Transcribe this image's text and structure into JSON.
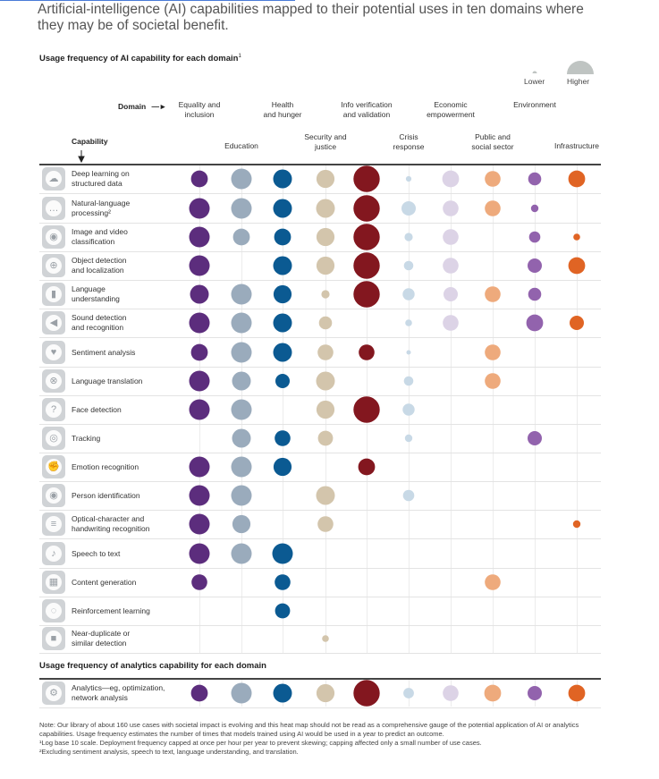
{
  "title": "Artificial-intelligence (AI) capabilities mapped to their potential uses in ten domains where they may be of societal benefit.",
  "chart_data": {
    "type": "bubble-heatmap",
    "title": "Usage frequency of AI capability for each domain",
    "title_sup": "1",
    "scale": "log base 10",
    "legend": {
      "lower": "Lower",
      "higher": "Higher"
    },
    "axis_labels": {
      "domain": "Domain",
      "capability": "Capability"
    },
    "domains": [
      {
        "name": "Equality and inclusion",
        "lines": [
          "Equality and",
          "inclusion"
        ],
        "color": "#5c2d7d"
      },
      {
        "name": "Education",
        "lines": [
          "Education"
        ],
        "color": "#9aabbc"
      },
      {
        "name": "Health and hunger",
        "lines": [
          "Health",
          "and hunger"
        ],
        "color": "#0b5a92"
      },
      {
        "name": "Security and justice",
        "lines": [
          "Security and",
          "justice"
        ],
        "color": "#d3c5ac"
      },
      {
        "name": "Info verification and validation",
        "lines": [
          "Info verification",
          "and validation"
        ],
        "color": "#83171f"
      },
      {
        "name": "Crisis response",
        "lines": [
          "Crisis",
          "response"
        ],
        "color": "#c8d9e6"
      },
      {
        "name": "Economic empowerment",
        "lines": [
          "Economic",
          "empowerment"
        ],
        "color": "#dcd3e6"
      },
      {
        "name": "Public and social sector",
        "lines": [
          "Public and",
          "social sector"
        ],
        "color": "#eeaa7c"
      },
      {
        "name": "Environment",
        "lines": [
          "Environment"
        ],
        "color": "#9263ad"
      },
      {
        "name": "Infrastructure",
        "lines": [
          "Infrastructure"
        ],
        "color": "#e06424"
      }
    ],
    "capabilities": [
      {
        "name": "Deep learning on structured data",
        "lines": [
          "Deep learning on",
          "structured data"
        ],
        "icon": "brain-icon",
        "values": [
          0.45,
          0.55,
          0.5,
          0.48,
          0.7,
          0.15,
          0.45,
          0.42,
          0.35,
          0.45
        ]
      },
      {
        "name": "Natural-language processing",
        "lines": [
          "Natural-language",
          "processing²"
        ],
        "icon": "speech-bubble-icon",
        "values": [
          0.55,
          0.55,
          0.5,
          0.5,
          0.7,
          0.38,
          0.42,
          0.42,
          0.2,
          0
        ]
      },
      {
        "name": "Image and video classification",
        "lines": [
          "Image and video",
          "classification"
        ],
        "icon": "camera-icon",
        "values": [
          0.55,
          0.45,
          0.45,
          0.48,
          0.7,
          0.22,
          0.42,
          0,
          0.3,
          0.18
        ]
      },
      {
        "name": "Object detection and localization",
        "lines": [
          "Object detection",
          "and localization"
        ],
        "icon": "target-icon",
        "values": [
          0.55,
          0,
          0.5,
          0.48,
          0.7,
          0.25,
          0.42,
          0,
          0.38,
          0.45
        ]
      },
      {
        "name": "Language understanding",
        "lines": [
          "Language",
          "understanding"
        ],
        "icon": "bar-graph-icon",
        "values": [
          0.5,
          0.55,
          0.48,
          0.22,
          0.7,
          0.32,
          0.38,
          0.42,
          0.35,
          0
        ]
      },
      {
        "name": "Sound detection and recognition",
        "lines": [
          "Sound detection",
          "and recognition"
        ],
        "icon": "megaphone-icon",
        "values": [
          0.55,
          0.55,
          0.5,
          0.35,
          0,
          0.18,
          0.42,
          0,
          0.45,
          0.38
        ]
      },
      {
        "name": "Sentiment analysis",
        "lines": [
          "Sentiment analysis"
        ],
        "icon": "heart-icon",
        "values": [
          0.45,
          0.55,
          0.5,
          0.42,
          0.42,
          0.12,
          0,
          0.42,
          0,
          0
        ]
      },
      {
        "name": "Language translation",
        "lines": [
          "Language translation"
        ],
        "icon": "globe-icon",
        "values": [
          0.55,
          0.5,
          0.38,
          0.5,
          0,
          0.25,
          0,
          0.42,
          0,
          0
        ]
      },
      {
        "name": "Face detection",
        "lines": [
          "Face detection"
        ],
        "icon": "question-icon",
        "values": [
          0.55,
          0.55,
          0,
          0.48,
          0.7,
          0.32,
          0,
          0,
          0,
          0
        ]
      },
      {
        "name": "Tracking",
        "lines": [
          "Tracking"
        ],
        "icon": "tracking-icon",
        "values": [
          0,
          0.5,
          0.42,
          0.4,
          0,
          0.2,
          0,
          0,
          0.38,
          0
        ]
      },
      {
        "name": "Emotion recognition",
        "lines": [
          "Emotion recognition"
        ],
        "icon": "fist-icon",
        "values": [
          0.55,
          0.55,
          0.48,
          0,
          0.45,
          0,
          0,
          0,
          0,
          0
        ]
      },
      {
        "name": "Person identification",
        "lines": [
          "Person identification"
        ],
        "icon": "eye-icon",
        "values": [
          0.55,
          0.55,
          0,
          0.5,
          0,
          0.3,
          0,
          0,
          0,
          0
        ]
      },
      {
        "name": "Optical-character and handwriting recognition",
        "lines": [
          "Optical-character and",
          "handwriting recognition"
        ],
        "icon": "document-icon",
        "values": [
          0.55,
          0.48,
          0,
          0.42,
          0,
          0,
          0,
          0,
          0,
          0.2
        ]
      },
      {
        "name": "Speech to text",
        "lines": [
          "Speech to text"
        ],
        "icon": "audio-wave-icon",
        "values": [
          0.55,
          0.55,
          0.55,
          0,
          0,
          0,
          0,
          0,
          0,
          0
        ]
      },
      {
        "name": "Content generation",
        "lines": [
          "Content generation"
        ],
        "icon": "grid-icon",
        "values": [
          0.42,
          0,
          0.42,
          0,
          0,
          0,
          0,
          0.42,
          0,
          0
        ]
      },
      {
        "name": "Reinforcement learning",
        "lines": [
          "Reinforcement learning"
        ],
        "icon": "dotted-circle-icon",
        "values": [
          0,
          0,
          0.4,
          0,
          0,
          0,
          0,
          0,
          0,
          0
        ]
      },
      {
        "name": "Near-duplicate or similar detection",
        "lines": [
          "Near-duplicate or",
          "similar detection"
        ],
        "icon": "square-icon",
        "values": [
          0,
          0,
          0,
          0.18,
          0,
          0,
          0,
          0,
          0,
          0
        ]
      }
    ],
    "analytics_title": "Usage frequency of analytics capability for each domain",
    "analytics": {
      "name": "Analytics—eg, optimization, network analysis",
      "lines": [
        "Analytics—eg, optimization,",
        "network analysis"
      ],
      "icon": "analytics-icon",
      "values": [
        0.45,
        0.55,
        0.5,
        0.48,
        0.7,
        0.28,
        0.42,
        0.45,
        0.38,
        0.45
      ]
    }
  },
  "notes": [
    "Note: Our library of about 160 use cases with societal impact is evolving and this heat map should not be read as a comprehensive gauge of the potential application of AI or analytics capabilities. Usage frequency estimates the number of times that models trained using AI would be used in a year to predict an outcome.",
    "¹Log base 10 scale. Deployment frequency capped at once per hour per year to prevent skewing; capping affected only a small number of use cases.",
    "²Excluding sentiment analysis, speech to text, language understanding, and translation."
  ]
}
